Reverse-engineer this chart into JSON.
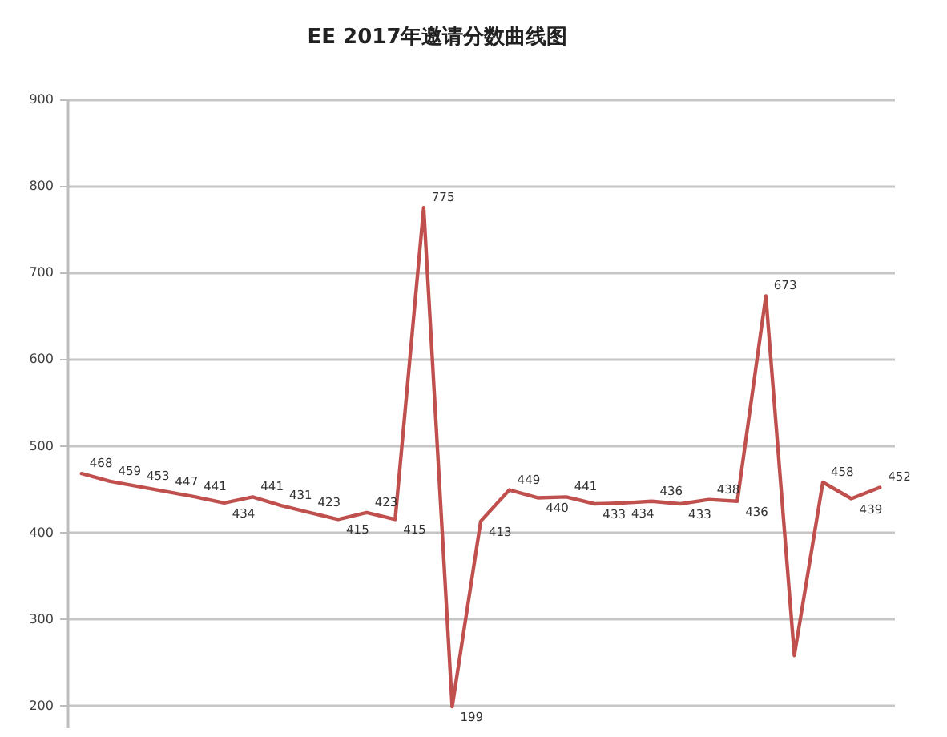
{
  "chart_data": {
    "type": "line",
    "title": "EE 2017年邀请分数曲线图",
    "categories": [
      null,
      null,
      null,
      null,
      null,
      null,
      null,
      null,
      null,
      null,
      null,
      null,
      null,
      null,
      null,
      null,
      null,
      null,
      null,
      null,
      null,
      null,
      null,
      null,
      null,
      null,
      null,
      null,
      null
    ],
    "series": [
      {
        "color": "#c0504d",
        "values": [
          468,
          459,
          453,
          447,
          441,
          434,
          441,
          431,
          423,
          415,
          423,
          415,
          775,
          199,
          413,
          449,
          440,
          441,
          433,
          434,
          436,
          433,
          438,
          436,
          673,
          258,
          458,
          439,
          452
        ],
        "value_labels": [
          "468",
          "459",
          "453",
          "447",
          "441",
          "434",
          "441",
          "431",
          "423",
          "415",
          "423",
          "415",
          "775",
          "199",
          "413",
          "449",
          "440",
          "441",
          "433",
          "434",
          "436",
          "433",
          "438",
          "436",
          "673",
          null,
          "458",
          "439",
          "452"
        ]
      }
    ],
    "ylim": [
      175,
      900
    ],
    "yticks": [
      200,
      300,
      400,
      500,
      600,
      700,
      800,
      900
    ],
    "grid": "y",
    "tick_labels": "y",
    "marker": "none",
    "line_style": "solid"
  }
}
